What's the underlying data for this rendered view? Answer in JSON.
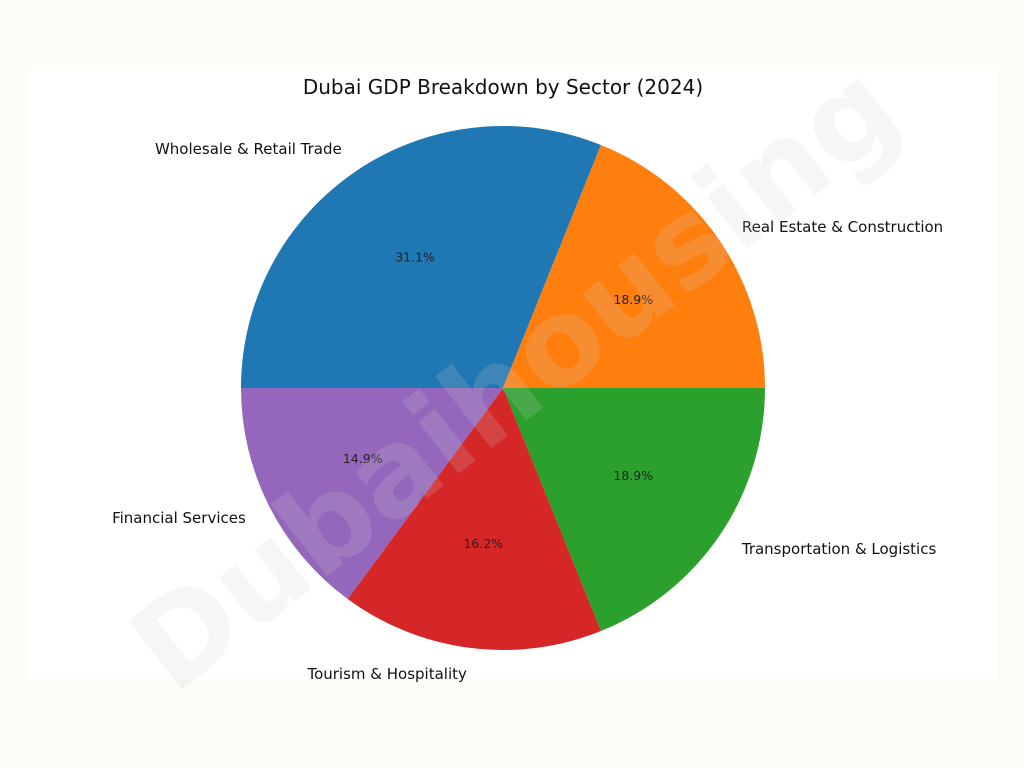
{
  "chart_data": {
    "type": "pie",
    "title": "Dubai GDP Breakdown by Sector (2024)",
    "start_angle_deg": 180,
    "direction": "clockwise",
    "slices": [
      {
        "label": "Wholesale & Retail Trade",
        "value": 31.1,
        "pct_label": "31.1%",
        "color": "#1f77b4"
      },
      {
        "label": "Real Estate & Construction",
        "value": 18.9,
        "pct_label": "18.9%",
        "color": "#ff7f0e"
      },
      {
        "label": "Transportation & Logistics",
        "value": 18.9,
        "pct_label": "18.9%",
        "color": "#2ca02c"
      },
      {
        "label": "Tourism & Hospitality",
        "value": 16.2,
        "pct_label": "16.2%",
        "color": "#d62728"
      },
      {
        "label": "Financial Services",
        "value": 14.9,
        "pct_label": "14.9%",
        "color": "#9467bd"
      }
    ]
  },
  "watermark": {
    "text": "Dubaihousing"
  }
}
